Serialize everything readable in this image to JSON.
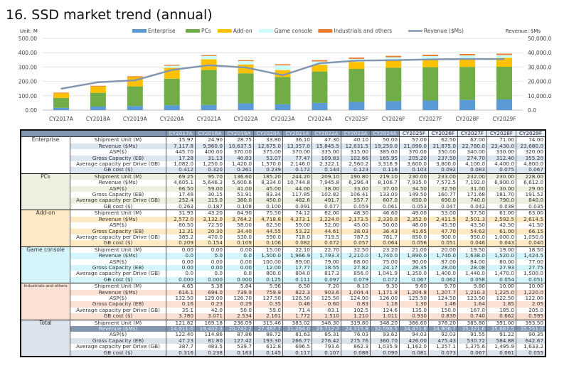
{
  "title": "16. SSD market trend (annual)",
  "chart_data": {
    "type": "bar",
    "stacked": true,
    "left_axis_label": "Unit: M",
    "right_axis_label": "Revenue: $Ms",
    "ylim": [
      0,
      500
    ],
    "y2lim": [
      0,
      50000
    ],
    "yticks": [
      "0.00",
      "100.00",
      "200.00",
      "300.00",
      "400.00",
      "500.00"
    ],
    "y2ticks": [
      "0.0",
      "10,000.0",
      "20,000.0",
      "30,000.0",
      "40,000.0",
      "50,000.0"
    ],
    "grid": true,
    "legend": "top",
    "categories": [
      "CY2017A",
      "CY2018A",
      "CY2019A",
      "CY2020A",
      "CY2021A",
      "CY2022A",
      "CY2023A",
      "CY2024A",
      "CY2025F",
      "CY2026F",
      "CY2027F",
      "CY2028F",
      "CY2029F"
    ],
    "series": [
      {
        "name": "Enterprise",
        "color": "#5b9bd5",
        "values": [
          15.97,
          24.9,
          28.75,
          33.8,
          36.1,
          47.3,
          40.1,
          50.0,
          57.0,
          62.5,
          67.0,
          71.0,
          74.0
        ]
      },
      {
        "name": "PCs",
        "color": "#70ad47",
        "values": [
          69.25,
          95.7,
          136.6,
          185.2,
          244.2,
          209.1,
          190.8,
          219.1,
          230.0,
          233.0,
          232.0,
          230.0,
          228.0
        ]
      },
      {
        "name": "Add-on",
        "color": "#ffc000",
        "values": [
          31.95,
          43.2,
          64.9,
          75.5,
          74.12,
          62.0,
          48.3,
          46.6,
          49.0,
          53.0,
          57.5,
          61.0,
          63.0
        ]
      },
      {
        "name": "Game console",
        "color": "#ccffff",
        "values": [
          0.0,
          0.0,
          0.0,
          15.0,
          22.1,
          22.7,
          32.5,
          23.2,
          21.0,
          20.0,
          19.5,
          19.0,
          18.5
        ]
      },
      {
        "name": "Industrials and others",
        "color": "#ed7d31",
        "values": [
          4.65,
          5.38,
          5.84,
          5.96,
          6.5,
          7.2,
          8.1,
          9.3,
          9.6,
          9.7,
          9.8,
          10.0,
          10.0
        ]
      }
    ],
    "line": {
      "name": "Revenue ($Ms)",
      "color": "#8497b0",
      "axis": "right",
      "values": [
        14911.0,
        19432.3,
        20742.2,
        27987.7,
        31264.0,
        29712.2,
        24315.8,
        32598.5,
        34471.8,
        34806.7,
        35321.6,
        35667.5,
        35551.0
      ]
    }
  },
  "table": {
    "columns": [
      "CY2017A",
      "CY2018A",
      "CY2019A",
      "CY2020A",
      "CY2021A",
      "CY2022A",
      "CY2023A",
      "CY2024A",
      "CY2025F",
      "CY2026F",
      "CY2027F",
      "CY2028F",
      "CY2029F"
    ],
    "row_labels": [
      "Shipment Unit (M)",
      "Revenue ($Ms)",
      "ASP($)",
      "Gross Capacity (EB)",
      "Average capacity per Drive (GB)",
      "GB cost ($)"
    ],
    "groups": [
      {
        "name": "Enterprise",
        "colors": [
          "#ffffff",
          "#dce6f1"
        ],
        "rows": [
          [
            "15.97",
            "24.90",
            "28.75",
            "33.80",
            "36.10",
            "47.30",
            "40.10",
            "50.00",
            "57.00",
            "62.50",
            "67.00",
            "71.00",
            "74.00"
          ],
          [
            "7,117.8",
            "9,960.0",
            "10,637.5",
            "12,675.0",
            "13,357.0",
            "15,845.5",
            "12,631.5",
            "19,250.0",
            "21,090.0",
            "21,875.0",
            "22,780.0",
            "23,430.0",
            "23,680.0"
          ],
          [
            "445.70",
            "400.00",
            "370.00",
            "375.00",
            "370.00",
            "335.00",
            "315.00",
            "385.00",
            "370.00",
            "350.00",
            "340.00",
            "330.00",
            "320.00"
          ],
          [
            "17.28",
            "31.13",
            "40.83",
            "53.07",
            "77.47",
            "109.83",
            "102.66",
            "165.95",
            "205.20",
            "237.50",
            "274.70",
            "312.40",
            "355.20"
          ],
          [
            "1,082.0",
            "1,250.0",
            "1,420.0",
            "1,570.0",
            "2,146.0",
            "2,322.1",
            "2,560.2",
            "3,318.9",
            "3,600.0",
            "3,800.0",
            "4,100.0",
            "4,400.0",
            "4,800.0"
          ],
          [
            "0.412",
            "0.320",
            "0.261",
            "0.239",
            "0.172",
            "0.144",
            "0.123",
            "0.116",
            "0.103",
            "0.092",
            "0.083",
            "0.075",
            "0.067"
          ]
        ]
      },
      {
        "name": "PCs",
        "colors": [
          "#ebf1de",
          "#ffffff"
        ],
        "rows": [
          [
            "69.25",
            "95.70",
            "136.60",
            "185.20",
            "244.20",
            "209.10",
            "190.80",
            "219.10",
            "230.00",
            "233.00",
            "232.00",
            "230.00",
            "228.00"
          ],
          [
            "4,605.1",
            "5,646.3",
            "5,600.6",
            "8,334.0",
            "10,744.8",
            "7,945.8",
            "6,296.4",
            "8,106.7",
            "7,935.0",
            "7,572.5",
            "7,192.0",
            "6,900.0",
            "6,612.0"
          ],
          [
            "66.50",
            "59.00",
            "41.00",
            "45.00",
            "44.00",
            "38.00",
            "33.00",
            "37.00",
            "34.50",
            "32.50",
            "31.00",
            "30.00",
            "29.00"
          ],
          [
            "17.48",
            "30.15",
            "51.91",
            "83.34",
            "117.85",
            "102.82",
            "106.41",
            "133.00",
            "149.50",
            "160.77",
            "171.68",
            "181.70",
            "191.52"
          ],
          [
            "252.4",
            "315.0",
            "380.0",
            "450.0",
            "482.6",
            "491.7",
            "557.7",
            "607.0",
            "650.0",
            "690.0",
            "740.0",
            "790.0",
            "840.0"
          ],
          [
            "0.263",
            "0.187",
            "0.108",
            "0.100",
            "0.091",
            "0.077",
            "0.059",
            "0.061",
            "0.053",
            "0.047",
            "0.042",
            "0.038",
            "0.035"
          ]
        ]
      },
      {
        "name": "Add-on",
        "colors": [
          "#ffffff",
          "#fde9c4"
        ],
        "rows": [
          [
            "31.95",
            "43.20",
            "64.90",
            "75.50",
            "74.12",
            "62.00",
            "48.30",
            "46.60",
            "49.00",
            "53.00",
            "57.50",
            "61.00",
            "63.00"
          ],
          [
            "2,572.0",
            "3,132.0",
            "3,764.2",
            "4,718.8",
            "4,373.1",
            "3,224.0",
            "2,173.5",
            "2,330.0",
            "2,352.0",
            "2,411.5",
            "2,501.3",
            "2,592.5",
            "2,614.5"
          ],
          [
            "80.50",
            "72.50",
            "58.00",
            "62.50",
            "59.00",
            "52.00",
            "45.00",
            "50.00",
            "48.00",
            "45.50",
            "43.50",
            "42.50",
            "41.50"
          ],
          [
            "12.31",
            "20.30",
            "34.40",
            "44.55",
            "53.22",
            "44.61",
            "38.03",
            "36.43",
            "41.65",
            "47.70",
            "54.63",
            "61.00",
            "66.15"
          ],
          [
            "385.2",
            "470.0",
            "530.0",
            "590.0",
            "718.0",
            "719.5",
            "787.5",
            "781.7",
            "850.0",
            "900.0",
            "950.0",
            "1,000.0",
            "1,050.0"
          ],
          [
            "0.209",
            "0.154",
            "0.109",
            "0.106",
            "0.082",
            "0.072",
            "0.057",
            "0.064",
            "0.056",
            "0.051",
            "0.046",
            "0.043",
            "0.040"
          ]
        ]
      },
      {
        "name": "Game console",
        "colors": [
          "#ffffff",
          "#d3f5fb"
        ],
        "rows": [
          [
            "0.00",
            "0.00",
            "0.00",
            "15.00",
            "22.10",
            "22.70",
            "32.50",
            "23.20",
            "21.00",
            "20.00",
            "19.50",
            "19.00",
            "18.50"
          ],
          [
            "0.0",
            "0.0",
            "0.0",
            "1,500.0",
            "1,966.9",
            "1,793.3",
            "2,210.0",
            "1,740.0",
            "1,890.0",
            "1,740.0",
            "1,638.0",
            "1,520.0",
            "1,424.5"
          ],
          [
            "0.00",
            "0.00",
            "0.00",
            "100.00",
            "89.00",
            "79.00",
            "68.00",
            "75.00",
            "90.00",
            "87.00",
            "84.00",
            "80.00",
            "77.00"
          ],
          [
            "0.00",
            "0.00",
            "0.00",
            "12.00",
            "17.77",
            "18.55",
            "27.82",
            "24.17",
            "28.35",
            "28.00",
            "28.08",
            "27.93",
            "27.75"
          ],
          [
            "0.0",
            "0.0",
            "0.0",
            "800.0",
            "804.0",
            "817.3",
            "856.0",
            "1,041.9",
            "1,350.0",
            "1,400.0",
            "1,440.0",
            "1,470.0",
            "1,500.0"
          ],
          [
            "0.000",
            "0.000",
            "0.000",
            "0.125",
            "0.111",
            "0.097",
            "0.079",
            "0.072",
            "0.067",
            "0.062",
            "0.058",
            "0.054",
            "0.051"
          ]
        ]
      },
      {
        "name": "Industrials and others",
        "colors": [
          "#ffffff",
          "#fbe0d4"
        ],
        "rows": [
          [
            "4.65",
            "5.38",
            "5.84",
            "5.96",
            "6.50",
            "7.20",
            "8.10",
            "9.30",
            "9.60",
            "9.70",
            "9.80",
            "10.00",
            "10.00"
          ],
          [
            "616.1",
            "694.0",
            "739.9",
            "759.9",
            "822.3",
            "903.6",
            "1,004.4",
            "1,171.8",
            "1,204.8",
            "1,207.7",
            "1,210.3",
            "1,225.0",
            "1,220.0"
          ],
          [
            "132.50",
            "129.00",
            "126.70",
            "127.50",
            "126.50",
            "125.50",
            "124.00",
            "126.00",
            "125.50",
            "124.50",
            "123.50",
            "122.50",
            "122.00"
          ],
          [
            "0.16",
            "0.23",
            "0.29",
            "0.35",
            "0.46",
            "0.60",
            "0.83",
            "1.16",
            "1.30",
            "1.46",
            "1.64",
            "1.85",
            "2.05"
          ],
          [
            "35.1",
            "42.0",
            "50.0",
            "59.0",
            "71.4",
            "83.1",
            "102.5",
            "124.6",
            "135.0",
            "150.0",
            "167.0",
            "185.0",
            "205.0"
          ],
          [
            "3.780",
            "3.071",
            "2.534",
            "2.161",
            "1.772",
            "1.510",
            "1.210",
            "1.011",
            "0.930",
            "0.830",
            "0.740",
            "0.662",
            "0.595"
          ]
        ]
      },
      {
        "name": "Total",
        "colors": [
          "#ffffff",
          "#dce3ec"
        ],
        "rows": [
          [
            "121.82",
            "169.18",
            "236.09",
            "315.46",
            "383.02",
            "348.30",
            "319.80",
            "348.20",
            "366.60",
            "378.20",
            "385.80",
            "391.00",
            "393.50"
          ],
          [
            "14,911.0",
            "19,432.3",
            "20,742.2",
            "27,987.7",
            "31,264.0",
            "29,712.2",
            "24,315.8",
            "32,598.5",
            "34,471.8",
            "34,806.7",
            "35,321.6",
            "35,667.5",
            "35,551.0"
          ],
          [
            "122.40",
            "114.86",
            "87.86",
            "88.72",
            "81.63",
            "85.31",
            "76.03",
            "93.62",
            "94.03",
            "92.03",
            "91.55",
            "91.22",
            "90.35"
          ],
          [
            "47.23",
            "81.80",
            "127.42",
            "193.30",
            "266.77",
            "276.42",
            "275.76",
            "360.70",
            "426.00",
            "475.43",
            "530.72",
            "584.88",
            "642.67"
          ],
          [
            "387.7",
            "483.5",
            "539.7",
            "612.8",
            "696.5",
            "793.6",
            "862.3",
            "1,035.9",
            "1,162.0",
            "1,257.1",
            "1,375.6",
            "1,495.9",
            "1,633.2"
          ],
          [
            "0.316",
            "0.238",
            "0.163",
            "0.145",
            "0.117",
            "0.107",
            "0.088",
            "0.090",
            "0.081",
            "0.073",
            "0.067",
            "0.061",
            "0.055"
          ]
        ]
      }
    ]
  }
}
